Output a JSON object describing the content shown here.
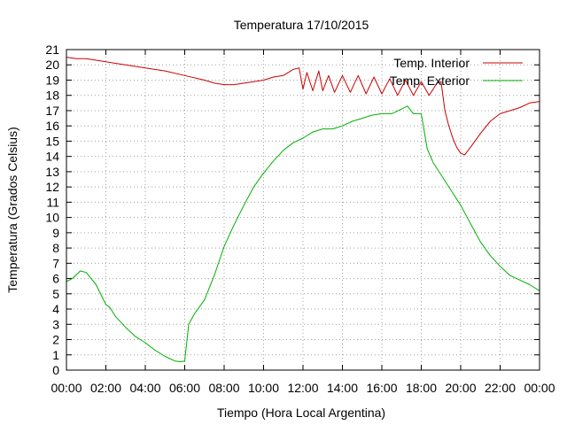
{
  "chart_data": {
    "type": "line",
    "title": "Temperatura 17/10/2015",
    "xlabel": "Tiempo (Hora Local Argentina)",
    "ylabel": "Temperatura (Grados Celsius)",
    "xlim": [
      0,
      24
    ],
    "ylim": [
      0,
      21
    ],
    "x_ticks": [
      {
        "value": 0,
        "label": "00:00"
      },
      {
        "value": 2,
        "label": "02:00"
      },
      {
        "value": 4,
        "label": "04:00"
      },
      {
        "value": 6,
        "label": "06:00"
      },
      {
        "value": 8,
        "label": "08:00"
      },
      {
        "value": 10,
        "label": "10:00"
      },
      {
        "value": 12,
        "label": "12:00"
      },
      {
        "value": 14,
        "label": "14:00"
      },
      {
        "value": 16,
        "label": "16:00"
      },
      {
        "value": 18,
        "label": "18:00"
      },
      {
        "value": 20,
        "label": "20:00"
      },
      {
        "value": 22,
        "label": "22:00"
      },
      {
        "value": 24,
        "label": "00:00"
      }
    ],
    "y_ticks": [
      0,
      1,
      2,
      3,
      4,
      5,
      6,
      7,
      8,
      9,
      10,
      11,
      12,
      13,
      14,
      15,
      16,
      17,
      18,
      19,
      20,
      21
    ],
    "grid": true,
    "legend_position": "top-right",
    "series": [
      {
        "name": "Temp. Interior",
        "color": "#cc0000",
        "x": [
          0,
          0.5,
          1,
          2,
          3,
          4,
          5,
          6,
          7,
          7.5,
          8,
          8.5,
          9,
          9.5,
          10,
          10.5,
          11,
          11.5,
          11.8,
          12,
          12.2,
          12.5,
          12.8,
          13,
          13.3,
          13.6,
          14,
          14.4,
          14.8,
          15.2,
          15.6,
          16,
          16.4,
          16.8,
          17.2,
          17.6,
          18,
          18.4,
          18.8,
          19,
          19.2,
          19.4,
          19.6,
          19.8,
          20,
          20.2,
          20.5,
          21,
          21.5,
          22,
          22.5,
          23,
          23.5,
          24
        ],
        "values": [
          20.5,
          20.4,
          20.4,
          20.2,
          20.0,
          19.8,
          19.6,
          19.3,
          19.0,
          18.8,
          18.7,
          18.7,
          18.8,
          18.9,
          19.0,
          19.2,
          19.3,
          19.7,
          19.8,
          18.4,
          19.5,
          18.3,
          19.6,
          18.3,
          19.3,
          18.2,
          19.3,
          18.2,
          19.3,
          18.1,
          19.2,
          18.1,
          19.1,
          18.0,
          19.0,
          18.0,
          18.9,
          18.0,
          18.8,
          18.9,
          17.0,
          16.0,
          15.2,
          14.6,
          14.2,
          14.1,
          14.6,
          15.5,
          16.3,
          16.8,
          17.0,
          17.2,
          17.5,
          17.6
        ]
      },
      {
        "name": "Temp. Exterior",
        "color": "#00b000",
        "x": [
          0,
          0.3,
          0.7,
          1.0,
          1.5,
          2.0,
          2.2,
          2.5,
          3.0,
          3.5,
          4.0,
          4.5,
          5.0,
          5.5,
          5.8,
          6.0,
          6.2,
          6.5,
          7.0,
          7.5,
          8.0,
          8.5,
          9.0,
          9.5,
          10.0,
          10.5,
          11.0,
          11.5,
          12.0,
          12.5,
          13.0,
          13.5,
          14.0,
          14.5,
          15.0,
          15.5,
          16.0,
          16.5,
          17.0,
          17.3,
          17.6,
          18.0,
          18.3,
          18.6,
          19.0,
          19.5,
          20.0,
          20.5,
          21.0,
          21.5,
          22.0,
          22.5,
          23.0,
          23.5,
          24.0
        ],
        "values": [
          5.8,
          6.0,
          6.5,
          6.4,
          5.6,
          4.3,
          4.1,
          3.5,
          2.8,
          2.2,
          1.8,
          1.3,
          0.9,
          0.6,
          0.55,
          0.6,
          3.0,
          3.7,
          4.6,
          6.2,
          8.1,
          9.5,
          10.8,
          12.0,
          12.9,
          13.7,
          14.4,
          14.9,
          15.2,
          15.6,
          15.8,
          15.8,
          16.0,
          16.3,
          16.5,
          16.7,
          16.8,
          16.8,
          17.1,
          17.3,
          16.8,
          16.8,
          14.5,
          13.6,
          12.8,
          11.8,
          10.8,
          9.6,
          8.4,
          7.5,
          6.8,
          6.2,
          5.9,
          5.6,
          5.2
        ]
      }
    ]
  }
}
